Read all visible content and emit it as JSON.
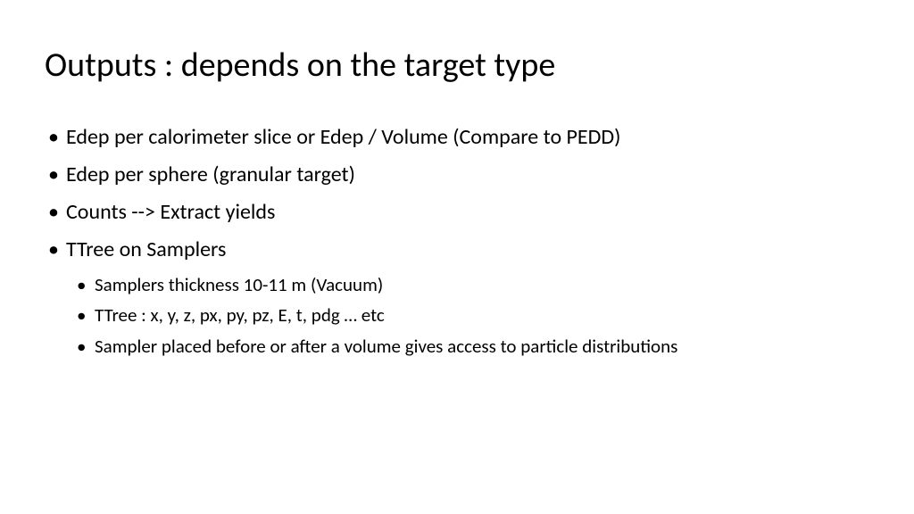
{
  "slide": {
    "title": "Outputs : depends on the target type",
    "background_color": "#ffffff",
    "text_color": "#000000",
    "title_fontsize": 38,
    "bullet_fontsize": 24,
    "sub_bullet_fontsize": 21,
    "font_family": "Calibri",
    "bullets": [
      {
        "text": "Edep per calorimeter slice or Edep / Volume (Compare to PEDD)"
      },
      {
        "text": "Edep per sphere (granular target)"
      },
      {
        "text": "Counts --> Extract yields"
      },
      {
        "text": "TTree on Samplers"
      }
    ],
    "sub_bullets": [
      {
        "text": "Samplers thickness 10-11 m (Vacuum)"
      },
      {
        "text": "TTree : x, y, z, px, py, pz, E, t, pdg … etc"
      },
      {
        "text": "Sampler placed before or after a volume gives access to particle distributions"
      }
    ]
  }
}
